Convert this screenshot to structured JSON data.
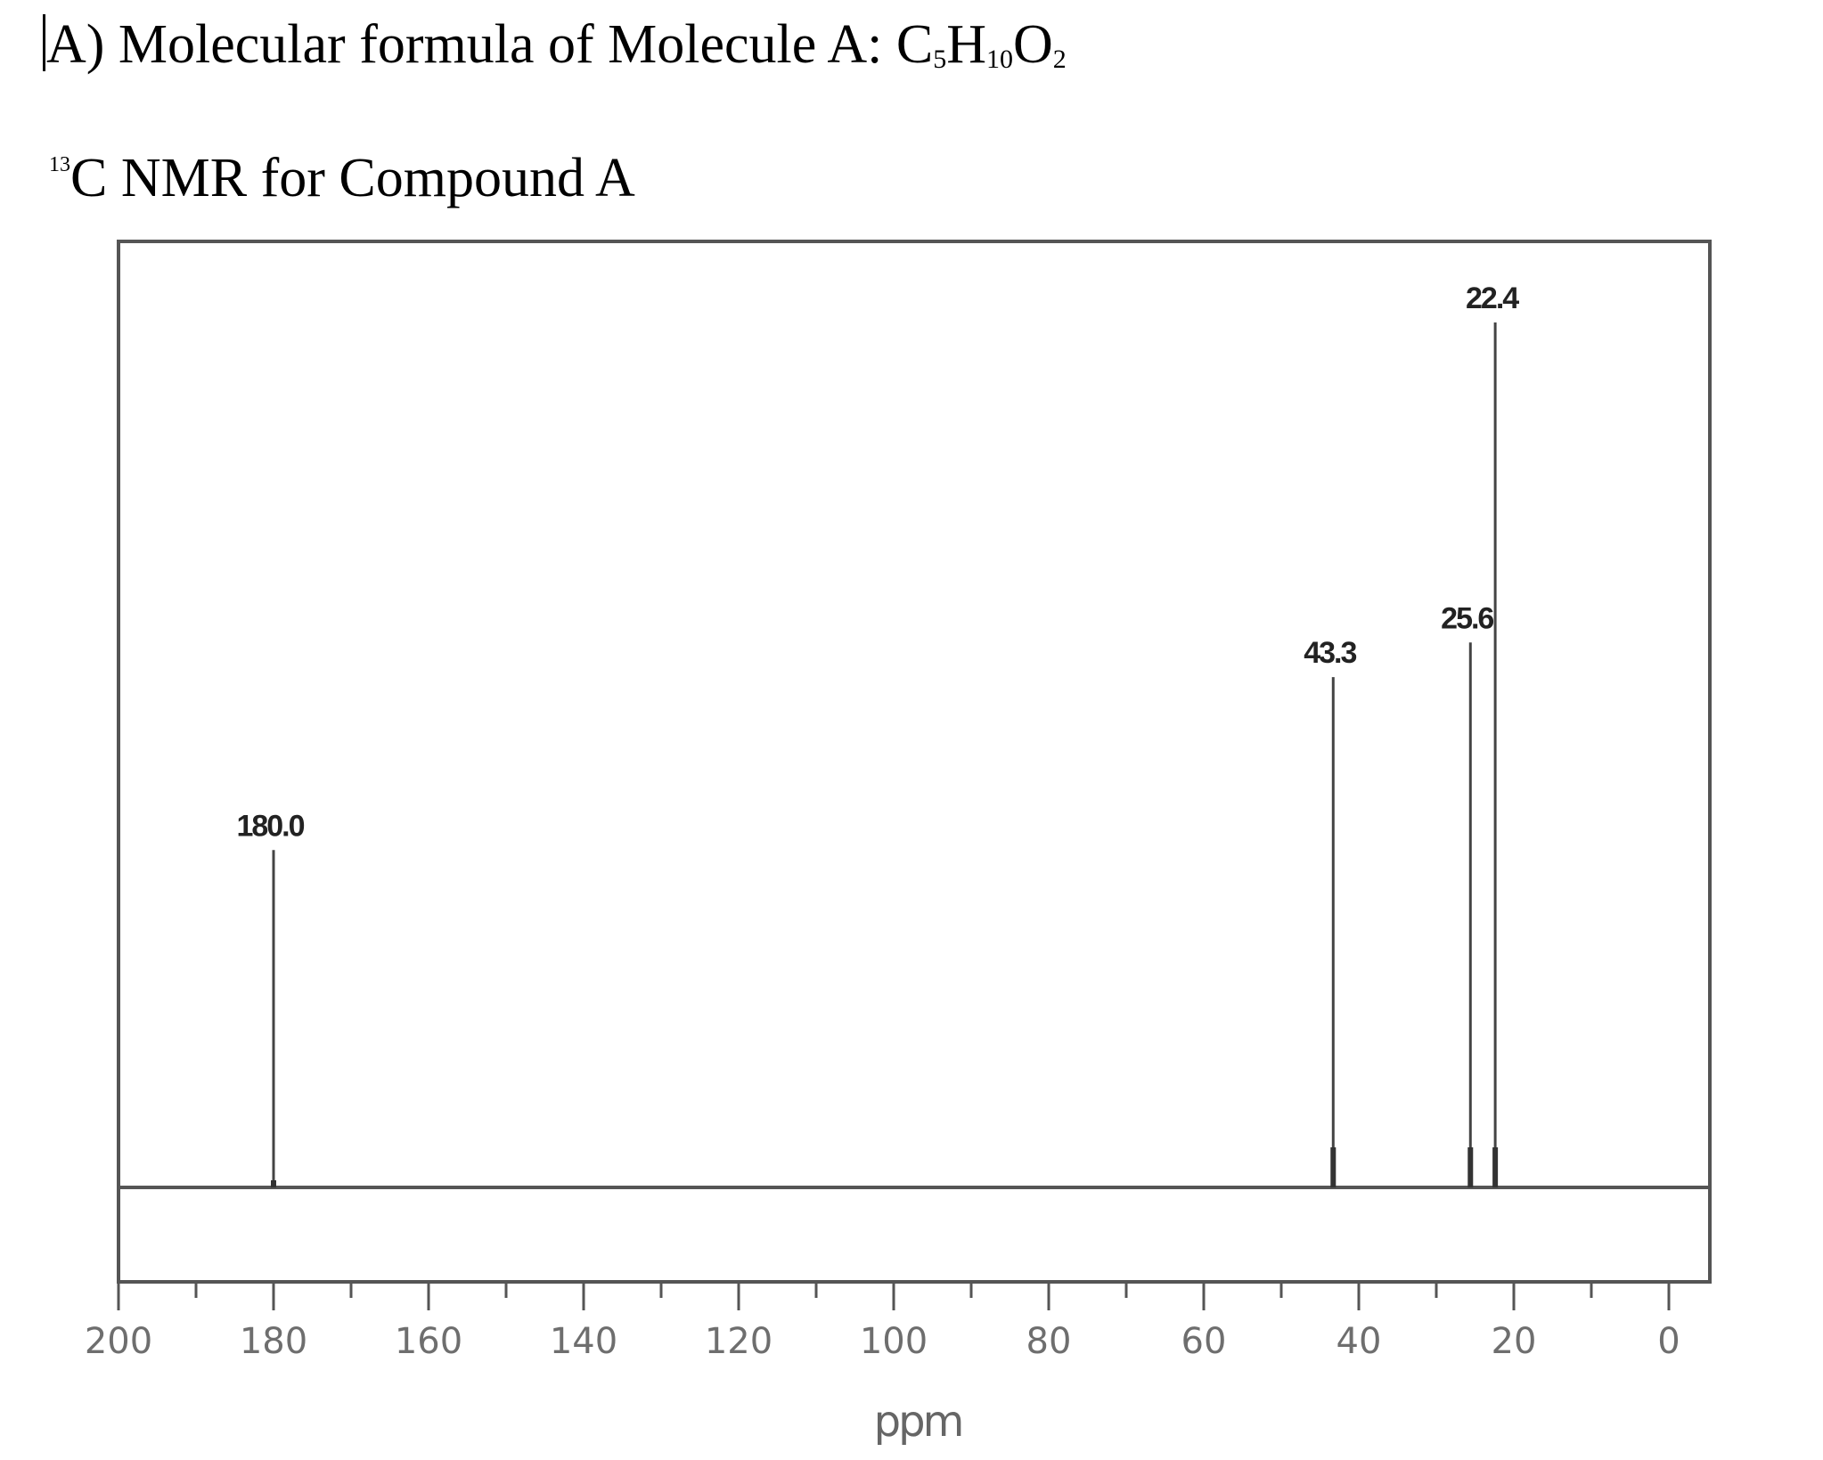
{
  "header": {
    "line1_prefix": "A) Molecular formula of Molecule A: ",
    "formula": [
      {
        "el": "C",
        "n": "5"
      },
      {
        "el": "H",
        "n": "10"
      },
      {
        "el": "O",
        "n": "2"
      }
    ],
    "line2_isotope": "13",
    "line2_text": "C NMR for Compound A"
  },
  "chart_data": {
    "type": "bar",
    "title": "13C NMR for Compound A",
    "xlabel": "ppm",
    "ylabel": "",
    "xlim": [
      200,
      0
    ],
    "x_reversed": true,
    "x_ticks": [
      200,
      180,
      160,
      140,
      120,
      100,
      80,
      60,
      40,
      20,
      0
    ],
    "minor_tick_step": 10,
    "grid": false,
    "legend": null,
    "peaks": [
      {
        "ppm": 180.0,
        "label": "180.0",
        "relative_height": 0.39
      },
      {
        "ppm": 43.3,
        "label": "43.3",
        "relative_height": 0.59
      },
      {
        "ppm": 25.6,
        "label": "25.6",
        "relative_height": 0.63
      },
      {
        "ppm": 22.4,
        "label": "22.4",
        "relative_height": 1.0
      }
    ]
  },
  "colors": {
    "frame": "#555555",
    "peak": "#444444",
    "tick_label": "#6e6e6e"
  }
}
